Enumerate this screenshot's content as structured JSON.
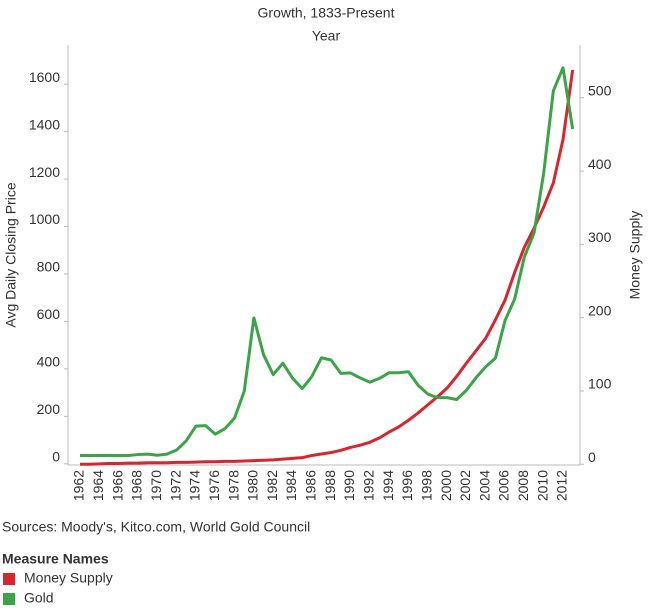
{
  "chart_data": {
    "type": "line",
    "title": "Growth, 1833-Present",
    "x_label": "Year",
    "y_label": "Avg Daily Closing Price",
    "y2_label": "Money Supply",
    "source": "Sources: Moody's, Kitco.com, World Gold Council",
    "legend_title": "Measure Names",
    "categories": [
      "1962",
      null,
      "1964",
      null,
      "1966",
      null,
      "1968",
      null,
      "1970",
      null,
      "1972",
      null,
      "1974",
      null,
      "1976",
      null,
      "1978",
      null,
      "1980",
      null,
      "1982",
      null,
      "1984",
      null,
      "1986",
      null,
      "1988",
      null,
      "1990",
      null,
      "1992",
      null,
      "1994",
      null,
      "1996",
      null,
      "1998",
      null,
      "2000",
      null,
      "2002",
      null,
      "2004",
      null,
      "2006",
      null,
      "2008",
      null,
      "2010",
      null,
      "2012",
      null
    ],
    "series": [
      {
        "name": "Money Supply",
        "color": "#d8262e",
        "axis": "y2",
        "values": [
          0,
          0,
          0.5,
          1,
          1,
          1.5,
          1.5,
          2,
          2,
          2,
          2.5,
          2.5,
          3,
          3.5,
          3.5,
          4,
          4,
          4.5,
          5,
          5.5,
          6,
          7,
          8,
          9,
          12,
          14,
          16,
          19,
          23,
          26,
          30,
          36,
          44,
          51,
          60,
          70,
          81,
          92,
          104,
          120,
          138,
          155,
          172,
          197,
          224,
          262,
          296,
          322,
          351,
          384,
          443,
          538
        ]
      },
      {
        "name": "Gold",
        "color": "#3aa447",
        "values": [
          35,
          35,
          35,
          35,
          35,
          35,
          39,
          41,
          36,
          41,
          58,
          97,
          159,
          161,
          125,
          148,
          193,
          306,
          615,
          460,
          376,
          424,
          361,
          317,
          368,
          447,
          437,
          381,
          383,
          362,
          344,
          360,
          384,
          384,
          388,
          331,
          294,
          279,
          279,
          271,
          310,
          363,
          409,
          445,
          604,
          695,
          872,
          972,
          1225,
          1572,
          1669,
          1411
        ]
      }
    ],
    "ylim": [
      -5,
      1765
    ],
    "yticks": [
      0,
      200,
      400,
      600,
      800,
      1000,
      1200,
      1400,
      1600
    ],
    "y2lim": [
      -1,
      572
    ],
    "y2ticks": [
      0,
      100,
      200,
      300,
      400,
      500
    ],
    "legend_position": "bottom-left"
  }
}
